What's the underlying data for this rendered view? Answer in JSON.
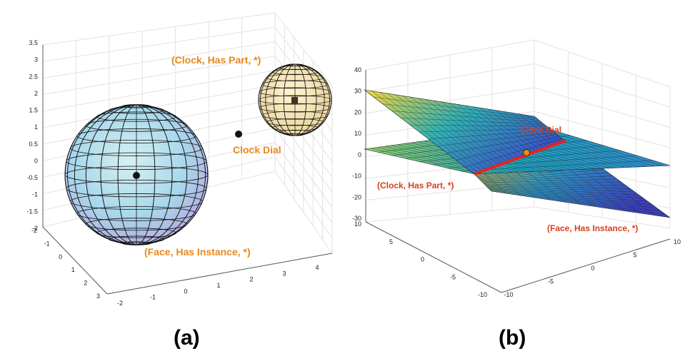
{
  "panel_a": {
    "caption": "(a)",
    "annotations": {
      "clock_has_part": "(Clock, Has Part, *)",
      "clock_dial": "Clock Dial",
      "face_has_instance": "(Face, Has Instance, *)"
    },
    "z_ticks": [
      "3.5",
      "3",
      "2.5",
      "2",
      "1.5",
      "1",
      "0.5",
      "0",
      "-0.5",
      "-1",
      "-1.5",
      "-2"
    ],
    "y_ticks": [
      "-2",
      "-1",
      "0",
      "1",
      "2",
      "3"
    ],
    "x_ticks": [
      "-2",
      "-1",
      "0",
      "1",
      "2",
      "3",
      "4"
    ],
    "colors": {
      "big_sphere": "#a9d6ee",
      "small_sphere": "#f3e2b2",
      "label": "#e8891a"
    }
  },
  "panel_b": {
    "caption": "(b)",
    "annotations": {
      "clock_dial": "Clock Dial",
      "clock_has_part": "(Clock, Has Part, *)",
      "face_has_instance": "(Face, Has Instance, *)"
    },
    "z_ticks": [
      "40",
      "30",
      "20",
      "10",
      "0",
      "-10",
      "-20",
      "-30"
    ],
    "y_ticks": [
      "10",
      "5",
      "0",
      "-5",
      "-10"
    ],
    "x_ticks": [
      "-10",
      "-5",
      "0",
      "5",
      "10"
    ],
    "colors": {
      "intersection_line": "#e8231d",
      "label": "#d8401c"
    }
  }
}
